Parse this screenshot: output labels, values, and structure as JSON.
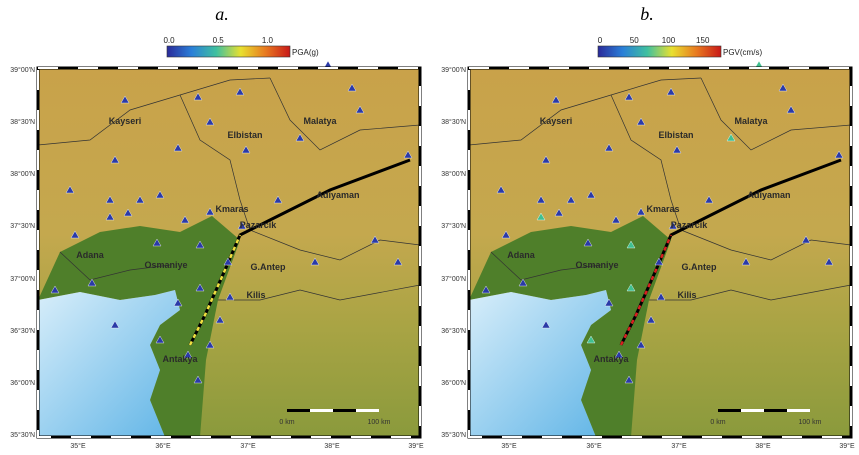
{
  "panels": [
    {
      "label": "a.",
      "colorbar": {
        "ticks": [
          "0.0",
          "0.5",
          "1.0"
        ],
        "unit": "PGA(g)"
      }
    },
    {
      "label": "b.",
      "colorbar": {
        "ticks": [
          "0",
          "50",
          "100",
          "150"
        ],
        "unit": "PGV(cm/s)"
      }
    }
  ],
  "map": {
    "lat_ticks": [
      "39°00'N",
      "38°30'N",
      "38°00'N",
      "37°30'N",
      "37°00'N",
      "36°30'N",
      "36°00'N",
      "35°30'N"
    ],
    "lon_ticks": [
      "35°E",
      "36°E",
      "37°E",
      "38°E",
      "39°E"
    ],
    "places": [
      "Kayseri",
      "Elbistan",
      "Malatya",
      "Adiyaman",
      "Kmaras",
      "Pazarcik",
      "Adana",
      "Osmaniye",
      "G.Antep",
      "Kilis",
      "Antakya"
    ],
    "scale": [
      "0 km",
      "100 km"
    ]
  }
}
